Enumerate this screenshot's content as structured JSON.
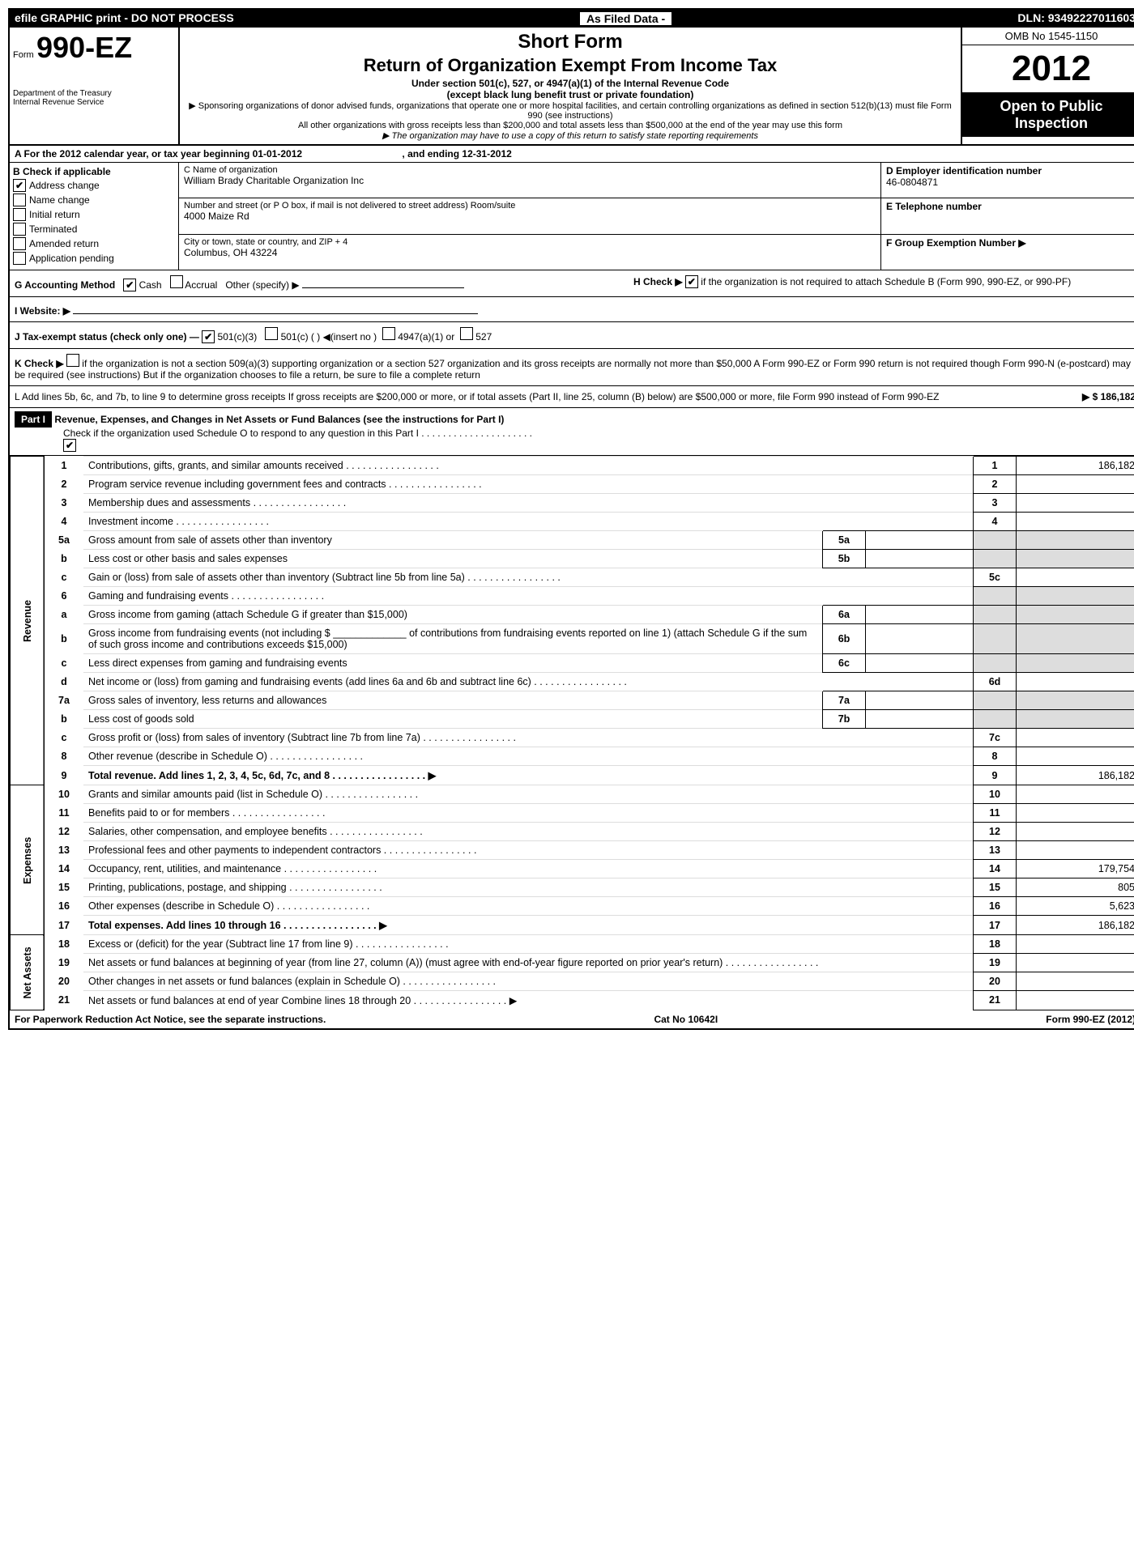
{
  "topbar": {
    "left": "efile GRAPHIC print - DO NOT PROCESS",
    "mid": "As Filed Data -",
    "right": "DLN: 93492227011603"
  },
  "header": {
    "form_prefix": "Form",
    "form_no": "990-EZ",
    "dept1": "Department of the Treasury",
    "dept2": "Internal Revenue Service",
    "title1": "Short Form",
    "title2": "Return of Organization Exempt From Income Tax",
    "sub1": "Under section 501(c), 527, or 4947(a)(1) of the Internal Revenue Code",
    "sub2": "(except black lung benefit trust or private foundation)",
    "fine1": "▶ Sponsoring organizations of donor advised funds, organizations that operate one or more hospital facilities, and certain controlling organizations as defined in section 512(b)(13) must file Form 990 (see instructions)",
    "fine2": "All other organizations with gross receipts less than $200,000 and total assets less than $500,000 at the end of the year may use this form",
    "fine3": "▶ The organization may have to use a copy of this return to satisfy state reporting requirements",
    "omb": "OMB No 1545-1150",
    "year": "2012",
    "open_pub1": "Open to Public",
    "open_pub2": "Inspection"
  },
  "rowA": {
    "text_a": "A  For the 2012 calendar year, or tax year beginning 01-01-2012",
    "text_b": ", and ending 12-31-2012"
  },
  "colB": {
    "title": "B  Check if applicable",
    "items": [
      {
        "label": "Address change",
        "checked": true
      },
      {
        "label": "Name change",
        "checked": false
      },
      {
        "label": "Initial return",
        "checked": false
      },
      {
        "label": "Terminated",
        "checked": false
      },
      {
        "label": "Amended return",
        "checked": false
      },
      {
        "label": "Application pending",
        "checked": false
      }
    ]
  },
  "colC": {
    "name_lbl": "C Name of organization",
    "name": "William Brady Charitable Organization Inc",
    "addr_lbl": "Number and street (or P O box, if mail is not delivered to street address) Room/suite",
    "addr": "4000 Maize Rd",
    "city_lbl": "City or town, state or country, and ZIP + 4",
    "city": "Columbus, OH  43224"
  },
  "colDEF": {
    "d_lbl": "D Employer identification number",
    "d_val": "46-0804871",
    "e_lbl": "E Telephone number",
    "e_val": "",
    "f_lbl": "F Group Exemption Number   ▶",
    "f_val": ""
  },
  "misc": {
    "g": "G Accounting Method",
    "g_cash": "Cash",
    "g_accrual": "Accrual",
    "g_other": "Other (specify) ▶",
    "h": "H  Check ▶",
    "h_text": "if the organization is not required to attach Schedule B (Form 990, 990-EZ, or 990-PF)",
    "i": "I Website: ▶",
    "j": "J Tax-exempt status (check only one) —",
    "j1": "501(c)(3)",
    "j2": "501(c) (   ) ◀(insert no )",
    "j3": "4947(a)(1) or",
    "j4": "527",
    "k": "K Check ▶",
    "k_text": "if the organization is not a section 509(a)(3) supporting organization or a section 527 organization and its gross receipts are normally not more than $50,000  A Form 990-EZ or Form 990 return is not required though Form 990-N (e-postcard) may be required (see instructions)  But if the organization chooses to file a return, be sure to file a complete return",
    "l": "L Add lines 5b, 6c, and 7b, to line 9 to determine gross receipts  If gross receipts are $200,000 or more, or if total assets (Part II, line 25, column (B) below) are $500,000 or more, file Form 990 instead of Form 990-EZ",
    "l_val": "▶ $ 186,182"
  },
  "part1": {
    "label": "Part I",
    "title": "Revenue, Expenses, and Changes in Net Assets or Fund Balances (see the instructions for Part I)",
    "check_text": "Check if the organization used Schedule O to respond to any question in this Part I  . . . . . . . . . . . . . . . . . . . . ."
  },
  "sections": {
    "revenue": "Revenue",
    "expenses": "Expenses",
    "netassets": "Net Assets"
  },
  "lines": [
    {
      "sec": "r",
      "no": "1",
      "desc": "Contributions, gifts, grants, and similar amounts received",
      "rno": "1",
      "rval": "186,182"
    },
    {
      "sec": "r",
      "no": "2",
      "desc": "Program service revenue including government fees and contracts",
      "rno": "2",
      "rval": ""
    },
    {
      "sec": "r",
      "no": "3",
      "desc": "Membership dues and assessments",
      "rno": "3",
      "rval": ""
    },
    {
      "sec": "r",
      "no": "4",
      "desc": "Investment income",
      "rno": "4",
      "rval": ""
    },
    {
      "sec": "r",
      "no": "5a",
      "desc": "Gross amount from sale of assets other than inventory",
      "mno": "5a",
      "mval": "",
      "shade": true
    },
    {
      "sec": "r",
      "no": "b",
      "desc": "Less  cost or other basis and sales expenses",
      "mno": "5b",
      "mval": "",
      "shade": true
    },
    {
      "sec": "r",
      "no": "c",
      "desc": "Gain or (loss) from sale of assets other than inventory (Subtract line 5b from line 5a)",
      "rno": "5c",
      "rval": ""
    },
    {
      "sec": "r",
      "no": "6",
      "desc": "Gaming and fundraising events",
      "shade": true
    },
    {
      "sec": "r",
      "no": "a",
      "desc": "Gross income from gaming (attach Schedule G if greater than $15,000)",
      "mno": "6a",
      "mval": "",
      "shade": true
    },
    {
      "sec": "r",
      "no": "b",
      "desc": "Gross income from fundraising events (not including $ _____________ of contributions from fundraising events reported on line 1) (attach Schedule G if the sum of such gross income and contributions exceeds $15,000)",
      "mno": "6b",
      "mval": "",
      "shade": true
    },
    {
      "sec": "r",
      "no": "c",
      "desc": "Less  direct expenses from gaming and fundraising events",
      "mno": "6c",
      "mval": "",
      "shade": true
    },
    {
      "sec": "r",
      "no": "d",
      "desc": "Net income or (loss) from gaming and fundraising events (add lines 6a and 6b and subtract line 6c)",
      "rno": "6d",
      "rval": ""
    },
    {
      "sec": "r",
      "no": "7a",
      "desc": "Gross sales of inventory, less returns and allowances",
      "mno": "7a",
      "mval": "",
      "shade": true
    },
    {
      "sec": "r",
      "no": "b",
      "desc": "Less  cost of goods sold",
      "mno": "7b",
      "mval": "",
      "shade": true
    },
    {
      "sec": "r",
      "no": "c",
      "desc": "Gross profit or (loss) from sales of inventory (Subtract line 7b from line 7a)",
      "rno": "7c",
      "rval": ""
    },
    {
      "sec": "r",
      "no": "8",
      "desc": "Other revenue (describe in Schedule O)",
      "rno": "8",
      "rval": ""
    },
    {
      "sec": "r",
      "no": "9",
      "desc": "Total revenue. Add lines 1, 2, 3, 4, 5c, 6d, 7c, and 8",
      "rno": "9",
      "rval": "186,182",
      "bold": true,
      "arrow": true
    },
    {
      "sec": "e",
      "no": "10",
      "desc": "Grants and similar amounts paid (list in Schedule O)",
      "rno": "10",
      "rval": ""
    },
    {
      "sec": "e",
      "no": "11",
      "desc": "Benefits paid to or for members",
      "rno": "11",
      "rval": ""
    },
    {
      "sec": "e",
      "no": "12",
      "desc": "Salaries, other compensation, and employee benefits",
      "rno": "12",
      "rval": ""
    },
    {
      "sec": "e",
      "no": "13",
      "desc": "Professional fees and other payments to independent contractors",
      "rno": "13",
      "rval": ""
    },
    {
      "sec": "e",
      "no": "14",
      "desc": "Occupancy, rent, utilities, and maintenance",
      "rno": "14",
      "rval": "179,754"
    },
    {
      "sec": "e",
      "no": "15",
      "desc": "Printing, publications, postage, and shipping",
      "rno": "15",
      "rval": "805"
    },
    {
      "sec": "e",
      "no": "16",
      "desc": "Other expenses (describe in Schedule O)",
      "rno": "16",
      "rval": "5,623"
    },
    {
      "sec": "e",
      "no": "17",
      "desc": "Total expenses. Add lines 10 through 16",
      "rno": "17",
      "rval": "186,182",
      "bold": true,
      "arrow": true
    },
    {
      "sec": "n",
      "no": "18",
      "desc": "Excess or (deficit) for the year (Subtract line 17 from line 9)",
      "rno": "18",
      "rval": ""
    },
    {
      "sec": "n",
      "no": "19",
      "desc": "Net assets or fund balances at beginning of year (from line 27, column (A)) (must agree with end-of-year figure reported on prior year's return)",
      "rno": "19",
      "rval": ""
    },
    {
      "sec": "n",
      "no": "20",
      "desc": "Other changes in net assets or fund balances (explain in Schedule O)",
      "rno": "20",
      "rval": ""
    },
    {
      "sec": "n",
      "no": "21",
      "desc": "Net assets or fund balances at end of year  Combine lines 18 through 20",
      "rno": "21",
      "rval": "",
      "arrow": true
    }
  ],
  "footer": {
    "left": "For Paperwork Reduction Act Notice, see the separate instructions.",
    "mid": "Cat No 10642I",
    "right": "Form 990-EZ (2012)"
  }
}
